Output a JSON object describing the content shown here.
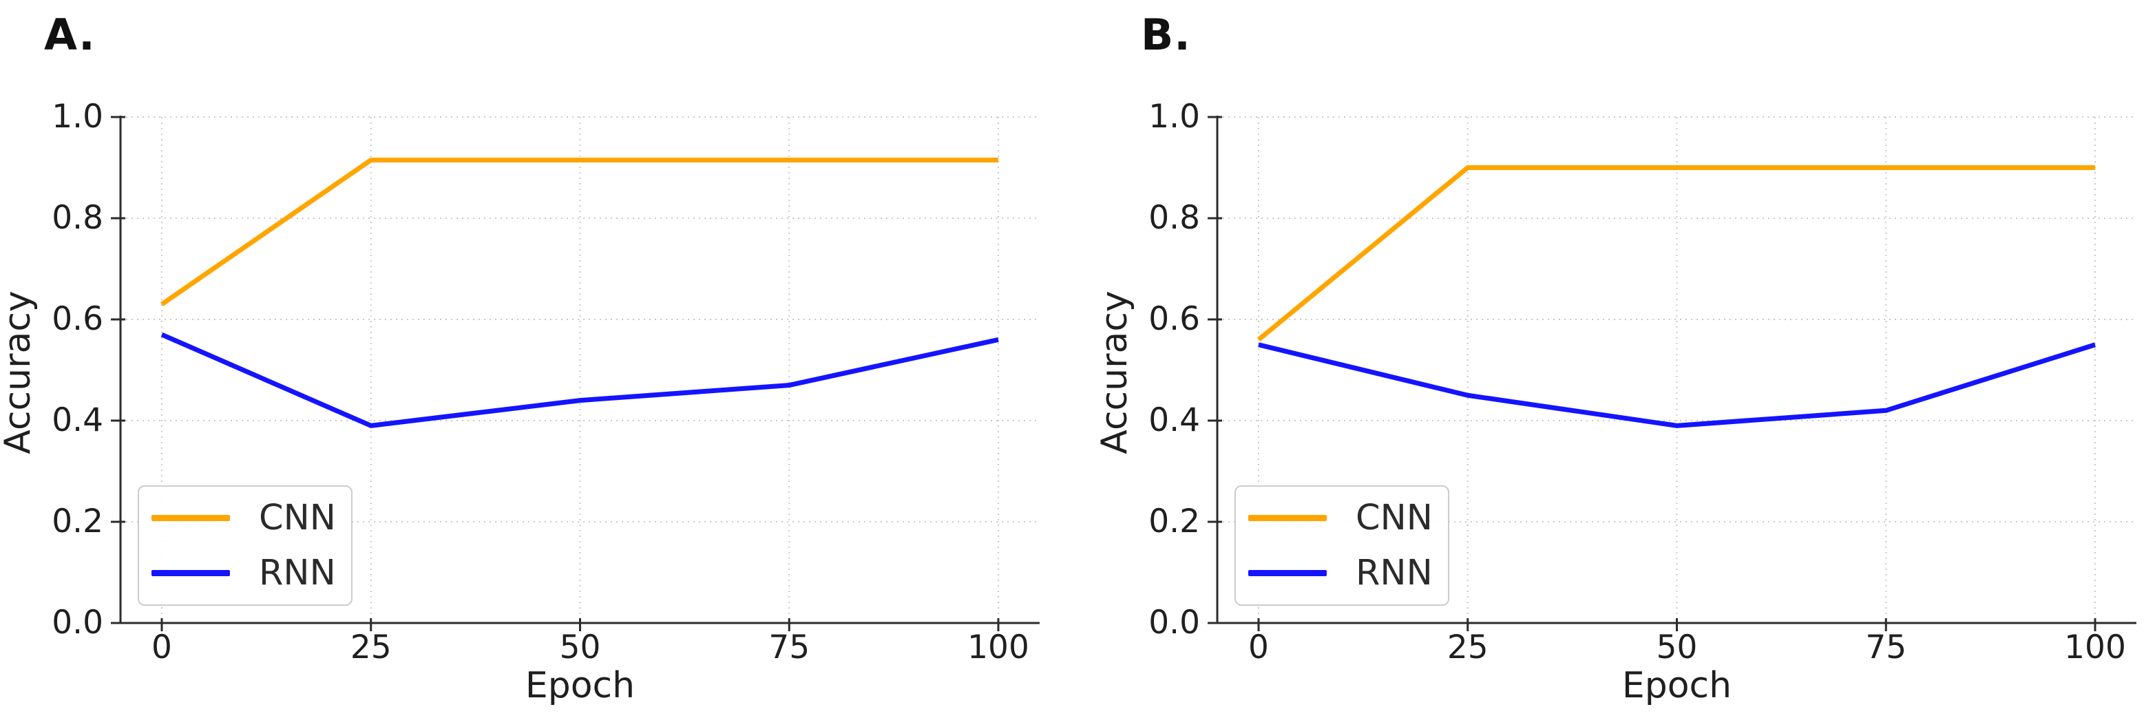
{
  "colors": {
    "cnn": "#ffa500",
    "rnn": "#1414ff",
    "grid": "#c9c9c9",
    "spine": "#2b2b2b",
    "tick_text": "#1f1f1f"
  },
  "chart_data": [
    {
      "type": "line",
      "title": "A.",
      "xlabel": "Epoch",
      "ylabel": "Accuracy",
      "x": [
        0,
        25,
        50,
        75,
        100
      ],
      "series": [
        {
          "name": "CNN",
          "color": "#ffa500",
          "values": [
            0.63,
            0.915,
            0.915,
            0.915,
            0.915
          ]
        },
        {
          "name": "RNN",
          "color": "#1414ff",
          "values": [
            0.57,
            0.39,
            0.44,
            0.47,
            0.56
          ]
        }
      ],
      "xticks": [
        0,
        25,
        50,
        75,
        100
      ],
      "yticks": [
        0.0,
        0.2,
        0.4,
        0.6,
        0.8,
        1.0
      ],
      "xlim": [
        0,
        100
      ],
      "ylim": [
        0.0,
        1.0
      ],
      "grid": "dotted",
      "legend_position": "lower left"
    },
    {
      "type": "line",
      "title": "B.",
      "xlabel": "Epoch",
      "ylabel": "Accuracy",
      "x": [
        0,
        25,
        50,
        75,
        100
      ],
      "series": [
        {
          "name": "CNN",
          "color": "#ffa500",
          "values": [
            0.56,
            0.9,
            0.9,
            0.9,
            0.9
          ]
        },
        {
          "name": "RNN",
          "color": "#1414ff",
          "values": [
            0.55,
            0.45,
            0.39,
            0.42,
            0.55
          ]
        }
      ],
      "xticks": [
        0,
        25,
        50,
        75,
        100
      ],
      "yticks": [
        0.0,
        0.2,
        0.4,
        0.6,
        0.8,
        1.0
      ],
      "xlim": [
        0,
        100
      ],
      "ylim": [
        0.0,
        1.0
      ],
      "grid": "dotted",
      "legend_position": "lower left"
    }
  ]
}
